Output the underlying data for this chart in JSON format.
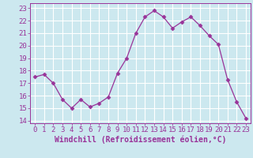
{
  "x": [
    0,
    1,
    2,
    3,
    4,
    5,
    6,
    7,
    8,
    9,
    10,
    11,
    12,
    13,
    14,
    15,
    16,
    17,
    18,
    19,
    20,
    21,
    22,
    23
  ],
  "y": [
    17.5,
    17.7,
    17.0,
    15.7,
    15.0,
    15.7,
    15.1,
    15.4,
    15.9,
    17.8,
    19.0,
    21.0,
    22.3,
    22.8,
    22.3,
    21.4,
    21.9,
    22.3,
    21.6,
    20.8,
    20.1,
    17.3,
    15.5,
    14.2
  ],
  "line_color": "#993399",
  "marker": "D",
  "marker_size": 2.5,
  "bg_color": "#cce8ef",
  "grid_color": "#ffffff",
  "xlabel": "Windchill (Refroidissement éolien,°C)",
  "ylim": [
    13.8,
    23.4
  ],
  "xlim": [
    -0.5,
    23.5
  ],
  "yticks": [
    14,
    15,
    16,
    17,
    18,
    19,
    20,
    21,
    22,
    23
  ],
  "xlabel_color": "#993399",
  "tick_color": "#993399",
  "label_fontsize": 7,
  "tick_fontsize": 6.5
}
